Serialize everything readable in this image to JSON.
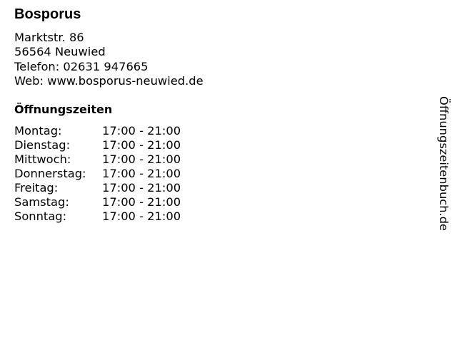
{
  "business": {
    "name": "Bosporus",
    "street": "Marktstr. 86",
    "city": "56564 Neuwied",
    "phone": "Telefon: 02631 947665",
    "web": "Web: www.bosporus-neuwied.de"
  },
  "hours": {
    "title": "Öffnungszeiten",
    "rows": [
      {
        "day": "Montag:",
        "time": "17:00 - 21:00"
      },
      {
        "day": "Dienstag:",
        "time": "17:00 - 21:00"
      },
      {
        "day": "Mittwoch:",
        "time": "17:00 - 21:00"
      },
      {
        "day": "Donnerstag:",
        "time": "17:00 - 21:00"
      },
      {
        "day": "Freitag:",
        "time": "17:00 - 21:00"
      },
      {
        "day": "Samstag:",
        "time": "17:00 - 21:00"
      },
      {
        "day": "Sonntag:",
        "time": "17:00 - 21:00"
      }
    ]
  },
  "watermark": "Öffnungszeitenbuch.de"
}
